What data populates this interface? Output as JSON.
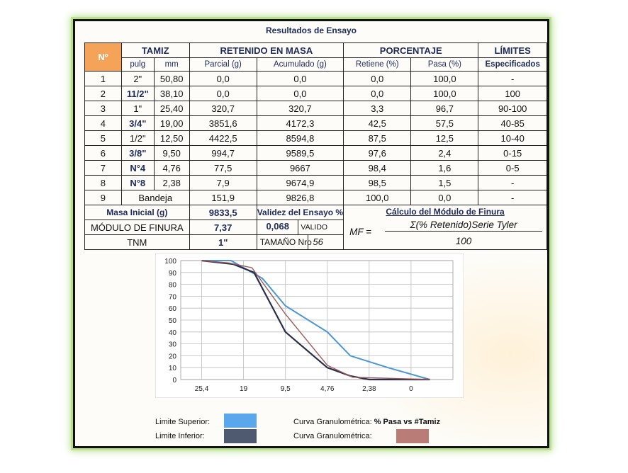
{
  "title": "Resultados de Ensayo",
  "headers": {
    "no": "Nº",
    "tamiz": "TAMIZ",
    "retenido": "RETENIDO EN MASA",
    "porcentaje": "PORCENTAJE",
    "limites": "LÍMITES",
    "pulg": "pulg",
    "mm": "mm",
    "parcial": "Parcial (g)",
    "acumulado": "Acumulado (g)",
    "retiene": "Retiene (%)",
    "pasa": "Pasa (%)",
    "especificados": "Especificados"
  },
  "rows": [
    {
      "n": "1",
      "pulg": "2\"",
      "mm": "50,80",
      "parcial": "0,0",
      "acum": "0,0",
      "ret": "0,0",
      "pasa": "100,0",
      "lim": "-"
    },
    {
      "n": "2",
      "pulg": "11/2\"",
      "mm": "38,10",
      "parcial": "0,0",
      "acum": "0,0",
      "ret": "0,0",
      "pasa": "100,0",
      "lim": "100"
    },
    {
      "n": "3",
      "pulg": "1\"",
      "mm": "25,40",
      "parcial": "320,7",
      "acum": "320,7",
      "ret": "3,3",
      "pasa": "96,7",
      "lim": "90-100"
    },
    {
      "n": "4",
      "pulg": "3/4\"",
      "mm": "19,00",
      "parcial": "3851,6",
      "acum": "4172,3",
      "ret": "42,5",
      "pasa": "57,5",
      "lim": "40-85"
    },
    {
      "n": "5",
      "pulg": "1/2\"",
      "mm": "12,50",
      "parcial": "4422,5",
      "acum": "8594,8",
      "ret": "87,5",
      "pasa": "12,5",
      "lim": "10-40"
    },
    {
      "n": "6",
      "pulg": "3/8\"",
      "mm": "9,50",
      "parcial": "994,7",
      "acum": "9589,5",
      "ret": "97,6",
      "pasa": "2,4",
      "lim": "0-15"
    },
    {
      "n": "7",
      "pulg": "N°4",
      "mm": "4,76",
      "parcial": "77,5",
      "acum": "9667",
      "ret": "98,4",
      "pasa": "1,6",
      "lim": "0-5"
    },
    {
      "n": "8",
      "pulg": "N°8",
      "mm": "2,38",
      "parcial": "7,9",
      "acum": "9674,9",
      "ret": "98,5",
      "pasa": "1,5",
      "lim": "-"
    },
    {
      "n": "9",
      "bandeja": "Bandeja",
      "parcial": "151,9",
      "acum": "9826,8",
      "ret": "100,0",
      "pasa": "0,0",
      "lim": "-"
    }
  ],
  "footer": {
    "masa_label": "Masa Inicial (g)",
    "masa_value": "9833,5",
    "validez_label": "Validez del Ensayo %",
    "calc_label": "Cálculo del Módulo de Finura",
    "modulo_label": "MÓDULO DE FINURA",
    "modulo_value": "7,37",
    "validez_value": "0,068",
    "valido": "VALIDO",
    "mf": "MF =",
    "numerator": "Σ(% Retenido)Serie Tyler",
    "denominator": "100",
    "tnm_label": "TNM",
    "tnm_value": "1\"",
    "tamano_label": "TAMAÑO Nro",
    "tamano_value": "56"
  },
  "chart_data": {
    "type": "line",
    "categories": [
      "25,4",
      "19",
      "9,5",
      "4,76",
      "2,38",
      "0"
    ],
    "y_ticks": [
      "100",
      "90",
      "80",
      "70",
      "60",
      "50",
      "40",
      "30",
      "20",
      "10",
      "0"
    ],
    "ylim": [
      0,
      100
    ],
    "grid": true,
    "series": [
      {
        "name": "Limite Superior:",
        "color": "#4a97d8",
        "x": [
          0,
          0.7,
          1.45,
          2,
          3,
          3.55,
          4,
          4.45,
          5.45
        ],
        "y": [
          100,
          100,
          85,
          62,
          40,
          20,
          15,
          10,
          0
        ]
      },
      {
        "name": "Limite Inferior:",
        "color": "#2a2d4a",
        "x": [
          0,
          0.75,
          1.25,
          2,
          3,
          3.55,
          4,
          5.45
        ],
        "y": [
          100,
          97,
          90,
          40,
          10,
          3,
          0,
          0
        ]
      },
      {
        "name": "Curva Granulométrica:",
        "color": "#9c5a55",
        "x": [
          0,
          0.65,
          1.2,
          2,
          3,
          3.6,
          4,
          5.45
        ],
        "y": [
          100,
          98,
          94,
          55,
          12,
          2,
          1.5,
          0
        ]
      }
    ]
  },
  "legend": {
    "sup": "Limite Superior:",
    "inf": "Limite Inferior:",
    "curva1_pre": "Curva Granulométrica: ",
    "curva1_bold": "% Pasa vs #Tamiz",
    "curva2": "Curva Granulométrica:",
    "sup_color": "#5aa7ec",
    "inf_color": "#4f596f",
    "curva_color": "#b97c76"
  }
}
